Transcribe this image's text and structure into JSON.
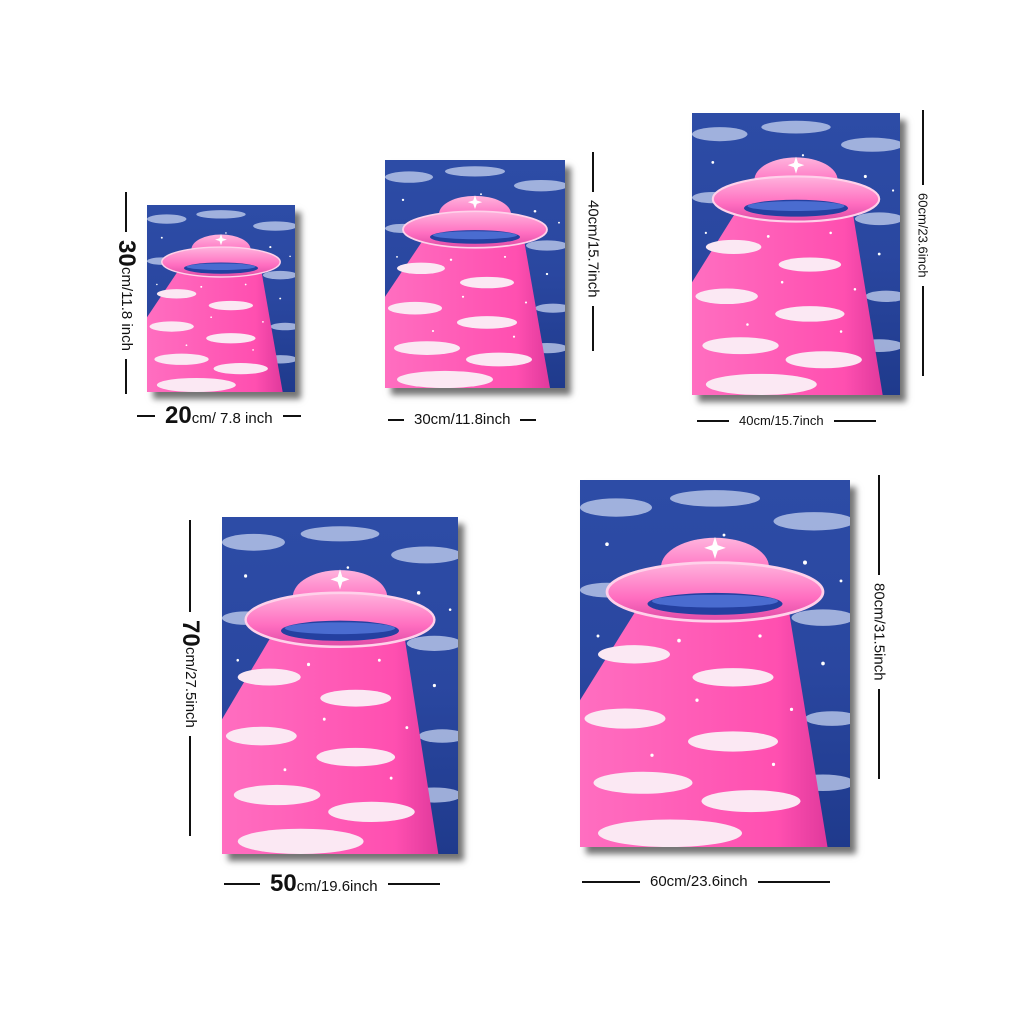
{
  "posters": [
    {
      "id": "p1",
      "width_label_big": "20",
      "width_label_rest": "cm/ 7.8 inch",
      "height_label_big": "30",
      "height_label_rest": "cm/11.8 inch"
    },
    {
      "id": "p2",
      "width_label": "30cm/11.8inch",
      "height_label": "40cm/15.7inch"
    },
    {
      "id": "p3",
      "width_label": "40cm/15.7inch",
      "height_label": "60cm/23.6inch"
    },
    {
      "id": "p4",
      "width_label_big": "50",
      "width_label_rest": "cm/19.6inch",
      "height_label_big": "70",
      "height_label_rest": "cm/27.5inch"
    },
    {
      "id": "p5",
      "width_label": "60cm/23.6inch",
      "height_label": "80cm/31.5inch"
    }
  ],
  "colors": {
    "sky": "#2f4fa8",
    "sky_dark": "#1c3380",
    "beam": "#ff5fb8",
    "ufo": "#ff7cc6",
    "cloud": "#f6e9f2"
  },
  "artwork": "pink-ufo-illustration"
}
